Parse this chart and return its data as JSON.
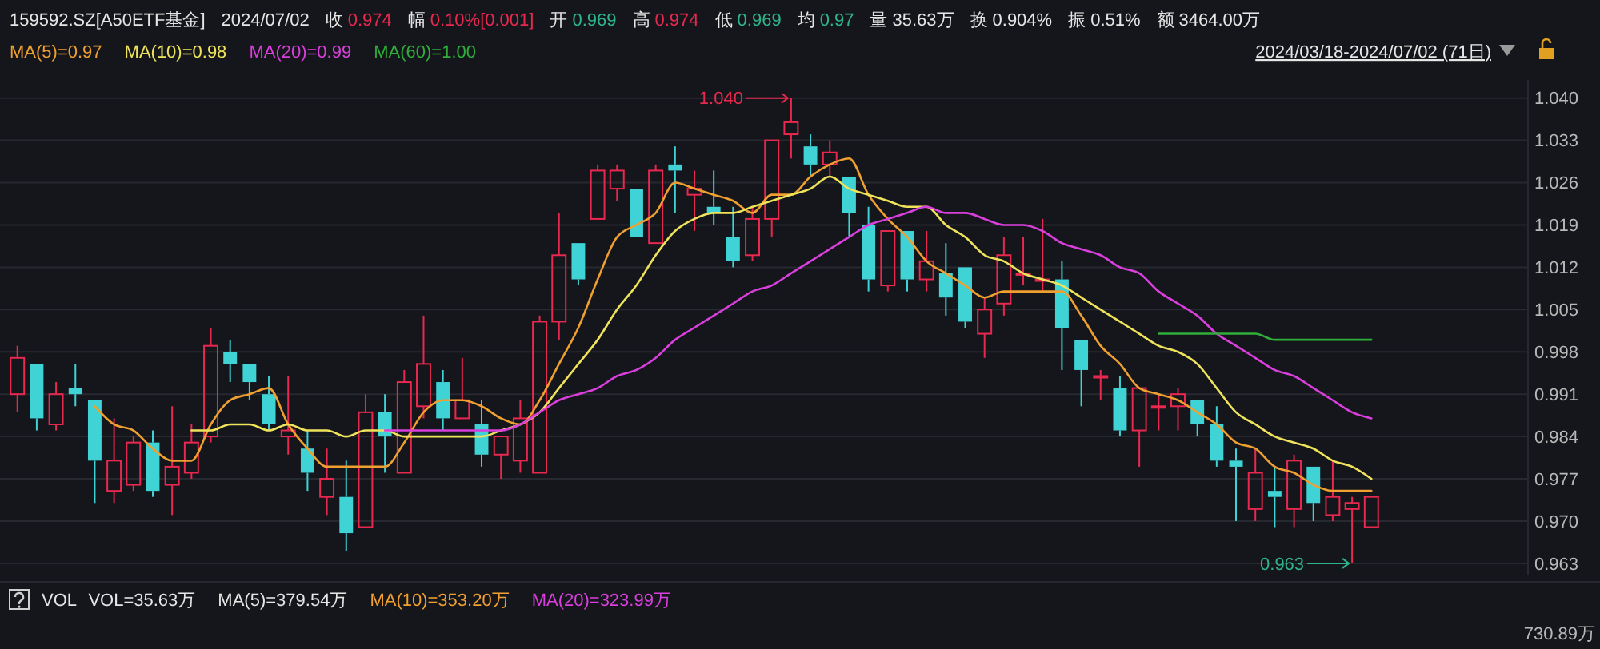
{
  "chart_data": {
    "type": "candlestick",
    "title": "159592.SZ[A50ETF基金]",
    "subtitle": "2024/07/02",
    "categories": [
      null,
      null,
      null,
      null,
      null,
      null,
      null,
      null,
      null,
      null,
      null,
      null,
      null,
      null,
      null,
      null,
      null,
      null,
      null,
      null,
      null,
      null,
      null,
      null,
      null,
      null,
      null,
      null,
      null,
      null,
      null,
      null,
      null,
      null,
      null,
      null,
      null,
      null,
      null,
      null,
      null,
      null,
      null,
      null,
      null,
      null,
      null,
      null,
      null,
      null,
      null,
      null,
      null,
      null,
      null,
      null,
      null,
      null,
      null,
      null,
      null,
      null,
      null,
      null,
      null,
      null,
      null,
      null,
      null,
      null,
      null
    ],
    "ohlc": [
      [
        0.991,
        0.999,
        0.988,
        0.997
      ],
      [
        0.996,
        0.996,
        0.985,
        0.987
      ],
      [
        0.986,
        0.993,
        0.985,
        0.991
      ],
      [
        0.992,
        0.996,
        0.989,
        0.991
      ],
      [
        0.99,
        0.99,
        0.973,
        0.98
      ],
      [
        0.975,
        0.987,
        0.973,
        0.98
      ],
      [
        0.976,
        0.984,
        0.975,
        0.983
      ],
      [
        0.983,
        0.985,
        0.974,
        0.975
      ],
      [
        0.976,
        0.989,
        0.971,
        0.979
      ],
      [
        0.978,
        0.986,
        0.977,
        0.983
      ],
      [
        0.984,
        1.002,
        0.983,
        0.999
      ],
      [
        0.998,
        1.0,
        0.993,
        0.996
      ],
      [
        0.996,
        0.996,
        0.99,
        0.993
      ],
      [
        0.991,
        0.994,
        0.985,
        0.986
      ],
      [
        0.984,
        0.994,
        0.981,
        0.985
      ],
      [
        0.982,
        0.985,
        0.975,
        0.978
      ],
      [
        0.974,
        0.982,
        0.971,
        0.977
      ],
      [
        0.974,
        0.98,
        0.965,
        0.968
      ],
      [
        0.969,
        0.991,
        0.969,
        0.988
      ],
      [
        0.988,
        0.991,
        0.978,
        0.984
      ],
      [
        0.978,
        0.995,
        0.978,
        0.993
      ],
      [
        0.989,
        1.004,
        0.987,
        0.996
      ],
      [
        0.993,
        0.995,
        0.985,
        0.987
      ],
      [
        0.987,
        0.997,
        0.987,
        0.99
      ],
      [
        0.986,
        0.99,
        0.979,
        0.981
      ],
      [
        0.981,
        0.984,
        0.977,
        0.984
      ],
      [
        0.98,
        0.99,
        0.978,
        0.987
      ],
      [
        0.978,
        1.004,
        0.978,
        1.003
      ],
      [
        1.003,
        1.021,
        1.0,
        1.014
      ],
      [
        1.016,
        1.016,
        1.009,
        1.01
      ],
      [
        1.02,
        1.029,
        1.02,
        1.028
      ],
      [
        1.025,
        1.029,
        1.023,
        1.028
      ],
      [
        1.025,
        1.025,
        1.017,
        1.017
      ],
      [
        1.016,
        1.029,
        1.016,
        1.028
      ],
      [
        1.029,
        1.032,
        1.021,
        1.028
      ],
      [
        1.024,
        1.028,
        1.018,
        1.025
      ],
      [
        1.022,
        1.028,
        1.019,
        1.021
      ],
      [
        1.017,
        1.022,
        1.012,
        1.013
      ],
      [
        1.014,
        1.022,
        1.013,
        1.02
      ],
      [
        1.02,
        1.033,
        1.017,
        1.033
      ],
      [
        1.034,
        1.04,
        1.03,
        1.036
      ],
      [
        1.032,
        1.034,
        1.027,
        1.029
      ],
      [
        1.029,
        1.033,
        1.027,
        1.031
      ],
      [
        1.027,
        1.027,
        1.017,
        1.021
      ],
      [
        1.019,
        1.022,
        1.008,
        1.01
      ],
      [
        1.009,
        1.018,
        1.008,
        1.018
      ],
      [
        1.018,
        1.018,
        1.008,
        1.01
      ],
      [
        1.01,
        1.018,
        1.008,
        1.013
      ],
      [
        1.011,
        1.016,
        1.004,
        1.007
      ],
      [
        1.012,
        1.012,
        1.002,
        1.003
      ],
      [
        1.001,
        1.007,
        0.997,
        1.005
      ],
      [
        1.006,
        1.017,
        1.004,
        1.014
      ],
      [
        1.011,
        1.017,
        1.009,
        1.011
      ],
      [
        1.01,
        1.02,
        1.008,
        1.01
      ],
      [
        1.01,
        1.013,
        0.995,
        1.002
      ],
      [
        1.0,
        1.0,
        0.989,
        0.995
      ],
      [
        0.994,
        0.995,
        0.99,
        0.994
      ],
      [
        0.992,
        0.994,
        0.984,
        0.985
      ],
      [
        0.985,
        0.992,
        0.979,
        0.992
      ],
      [
        0.989,
        0.991,
        0.985,
        0.989
      ],
      [
        0.989,
        0.992,
        0.985,
        0.991
      ],
      [
        0.99,
        0.99,
        0.984,
        0.986
      ],
      [
        0.986,
        0.989,
        0.979,
        0.98
      ],
      [
        0.98,
        0.982,
        0.97,
        0.979
      ],
      [
        0.972,
        0.982,
        0.97,
        0.978
      ],
      [
        0.975,
        0.979,
        0.969,
        0.974
      ],
      [
        0.972,
        0.981,
        0.969,
        0.98
      ],
      [
        0.979,
        0.979,
        0.97,
        0.973
      ],
      [
        0.971,
        0.98,
        0.97,
        0.974
      ],
      [
        0.972,
        0.974,
        0.963,
        0.973
      ],
      [
        0.969,
        0.974,
        0.969,
        0.974
      ]
    ],
    "series": [
      {
        "type": "line",
        "name": "MA(5)=0.97",
        "color": "#f0a030",
        "values": [
          null,
          null,
          null,
          null,
          0.989,
          0.986,
          0.985,
          0.982,
          0.98,
          0.98,
          0.986,
          0.99,
          0.991,
          0.992,
          0.986,
          0.982,
          0.979,
          0.979,
          0.979,
          0.979,
          0.983,
          0.988,
          0.99,
          0.99,
          0.989,
          0.987,
          0.986,
          0.99,
          0.996,
          1.002,
          1.01,
          1.017,
          1.019,
          1.021,
          1.026,
          1.025,
          1.024,
          1.023,
          1.021,
          1.024,
          1.024,
          1.027,
          1.029,
          1.03,
          1.024,
          1.02,
          1.017,
          1.013,
          1.011,
          1.009,
          1.007,
          1.008,
          1.008,
          1.008,
          1.008,
          1.004,
          0.999,
          0.996,
          0.992,
          0.991,
          0.99,
          0.988,
          0.986,
          0.983,
          0.982,
          0.979,
          0.978,
          0.976,
          0.975,
          0.975,
          0.975
        ]
      },
      {
        "type": "line",
        "name": "MA(10)=0.98",
        "color": "#efe35c",
        "values": [
          null,
          null,
          null,
          null,
          null,
          null,
          null,
          null,
          null,
          0.985,
          0.985,
          0.986,
          0.986,
          0.985,
          0.986,
          0.985,
          0.985,
          0.984,
          0.985,
          0.985,
          0.984,
          0.984,
          0.984,
          0.984,
          0.984,
          0.985,
          0.986,
          0.988,
          0.992,
          0.996,
          1.0,
          1.005,
          1.009,
          1.014,
          1.018,
          1.02,
          1.021,
          1.021,
          1.022,
          1.023,
          1.024,
          1.025,
          1.027,
          1.025,
          1.024,
          1.023,
          1.022,
          1.022,
          1.019,
          1.017,
          1.014,
          1.013,
          1.011,
          1.01,
          1.009,
          1.007,
          1.005,
          1.003,
          1.001,
          0.999,
          0.998,
          0.996,
          0.992,
          0.988,
          0.986,
          0.984,
          0.983,
          0.982,
          0.98,
          0.979,
          0.977
        ]
      },
      {
        "type": "line",
        "name": "MA(20)=0.99",
        "color": "#d93fdc",
        "values": [
          null,
          null,
          null,
          null,
          null,
          null,
          null,
          null,
          null,
          null,
          null,
          null,
          null,
          null,
          null,
          null,
          null,
          null,
          null,
          0.985,
          0.985,
          0.985,
          0.985,
          0.985,
          0.985,
          0.985,
          0.986,
          0.988,
          0.99,
          0.991,
          0.992,
          0.994,
          0.995,
          0.997,
          1.0,
          1.002,
          1.004,
          1.006,
          1.008,
          1.009,
          1.011,
          1.013,
          1.015,
          1.017,
          1.019,
          1.02,
          1.021,
          1.022,
          1.021,
          1.021,
          1.02,
          1.019,
          1.019,
          1.018,
          1.016,
          1.015,
          1.014,
          1.012,
          1.011,
          1.008,
          1.006,
          1.004,
          1.001,
          0.999,
          0.997,
          0.995,
          0.994,
          0.992,
          0.99,
          0.988,
          0.987
        ]
      },
      {
        "type": "line",
        "name": "MA(60)=1.00",
        "color": "#2fae3a",
        "values": [
          null,
          null,
          null,
          null,
          null,
          null,
          null,
          null,
          null,
          null,
          null,
          null,
          null,
          null,
          null,
          null,
          null,
          null,
          null,
          null,
          null,
          null,
          null,
          null,
          null,
          null,
          null,
          null,
          null,
          null,
          null,
          null,
          null,
          null,
          null,
          null,
          null,
          null,
          null,
          null,
          null,
          null,
          null,
          null,
          null,
          null,
          null,
          null,
          null,
          null,
          null,
          null,
          null,
          null,
          null,
          null,
          null,
          null,
          null,
          1.001,
          1.001,
          1.001,
          1.001,
          1.001,
          1.001,
          1.0,
          1.0,
          1.0,
          1.0,
          1.0,
          1.0
        ]
      }
    ],
    "ylim": [
      0.961,
      1.043
    ],
    "yticks": [
      {
        "value": 0.963,
        "label": "0.963"
      },
      {
        "value": 0.97,
        "label": "0.970"
      },
      {
        "value": 0.977,
        "label": "0.977"
      },
      {
        "value": 0.984,
        "label": "0.984"
      },
      {
        "value": 0.991,
        "label": "0.991"
      },
      {
        "value": 0.998,
        "label": "0.998"
      },
      {
        "value": 1.005,
        "label": "1.005"
      },
      {
        "value": 1.012,
        "label": "1.012"
      },
      {
        "value": 1.019,
        "label": "1.019"
      },
      {
        "value": 1.026,
        "label": "1.026"
      },
      {
        "value": 1.033,
        "label": "1.033"
      },
      {
        "value": 1.04,
        "label": "1.040"
      }
    ],
    "grid": "y",
    "legend": "top left",
    "tick_labels": "y",
    "annotations": [
      "收 0.974",
      "幅 0.10%[0.001]",
      "开 0.969",
      "高 0.974",
      "低 0.969",
      "均 0.97",
      "量 35.63万",
      "换 0.904%",
      "振 0.51%",
      "额 3464.00万",
      "2024/03/18-2024/07/02 (71日)",
      "VOL",
      "VOL=35.63万",
      "MA(5)=379.54万",
      "MA(10)=353.20万",
      "MA(20)=323.99万",
      "730.89万",
      "1.040",
      "0.963"
    ]
  }
}
